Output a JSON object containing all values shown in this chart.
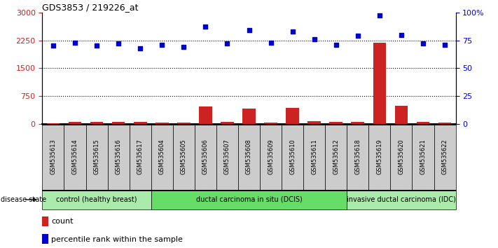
{
  "title": "GDS3853 / 219226_at",
  "samples": [
    "GSM535613",
    "GSM535614",
    "GSM535615",
    "GSM535616",
    "GSM535617",
    "GSM535604",
    "GSM535605",
    "GSM535606",
    "GSM535607",
    "GSM535608",
    "GSM535609",
    "GSM535610",
    "GSM535611",
    "GSM535612",
    "GSM535618",
    "GSM535619",
    "GSM535620",
    "GSM535621",
    "GSM535622"
  ],
  "count_values": [
    25,
    50,
    55,
    50,
    60,
    40,
    45,
    480,
    55,
    420,
    45,
    430,
    75,
    50,
    50,
    2180,
    490,
    60,
    40
  ],
  "percentile_values": [
    70,
    73,
    70,
    72,
    68,
    71,
    69,
    87,
    72,
    84,
    73,
    83,
    76,
    71,
    79,
    97,
    80,
    72,
    71
  ],
  "groups": [
    {
      "label": "control (healthy breast)",
      "start": 0,
      "end": 5
    },
    {
      "label": "ductal carcinoma in situ (DCIS)",
      "start": 5,
      "end": 14
    },
    {
      "label": "invasive ductal carcinoma (IDC)",
      "start": 14,
      "end": 19
    }
  ],
  "group_colors": [
    "#AAEAAA",
    "#66DD66",
    "#AAEAAA"
  ],
  "left_ylim": [
    0,
    3000
  ],
  "left_yticks": [
    0,
    750,
    1500,
    2250,
    3000
  ],
  "right_ylim": [
    0,
    100
  ],
  "right_yticks": [
    0,
    25,
    50,
    75,
    100
  ],
  "count_color": "#CC2222",
  "percentile_color": "#0000CC",
  "background_color": "#FFFFFF",
  "tick_label_color_left": "#CC2222",
  "tick_label_color_right": "#0000CC",
  "bar_width": 0.6,
  "legend_count_label": "count",
  "legend_percentile_label": "percentile rank within the sample",
  "disease_state_label": "disease state"
}
